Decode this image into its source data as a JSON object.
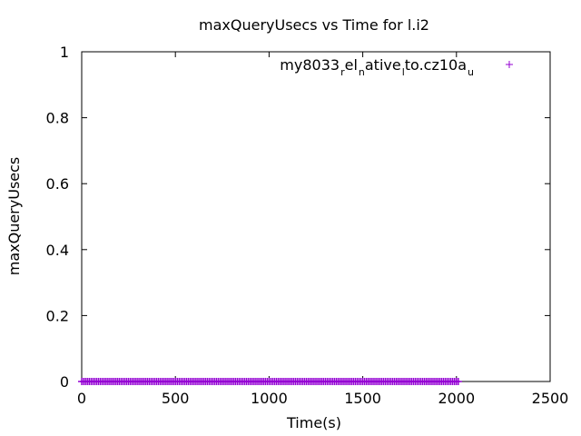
{
  "chart_data": {
    "type": "scatter",
    "title": "maxQueryUsecs vs Time for l.i2",
    "xlabel": "Time(s)",
    "ylabel": "maxQueryUsecs",
    "xlim": [
      0,
      2500
    ],
    "ylim": [
      0,
      1
    ],
    "xticks": [
      "0",
      "500",
      "1000",
      "1500",
      "2000",
      "2500"
    ],
    "yticks": [
      "0",
      "0.2",
      "0.4",
      "0.6",
      "0.8",
      "1"
    ],
    "legend_position": "top-right",
    "grid": false,
    "series": [
      {
        "name": "my8033_rel_native_lto.cz10a_u",
        "legend_parts": [
          {
            "text": "my8033",
            "sub": false
          },
          {
            "text": "r",
            "sub": true
          },
          {
            "text": "el",
            "sub": false
          },
          {
            "text": "n",
            "sub": true
          },
          {
            "text": "ative",
            "sub": false
          },
          {
            "text": "l",
            "sub": true
          },
          {
            "text": "to.cz10a",
            "sub": false
          },
          {
            "text": "u",
            "sub": true
          }
        ],
        "marker": "+",
        "color": "#9400d3",
        "x_start": 0,
        "x_end": 2010,
        "x_step": 10,
        "y_value": 0
      }
    ]
  }
}
